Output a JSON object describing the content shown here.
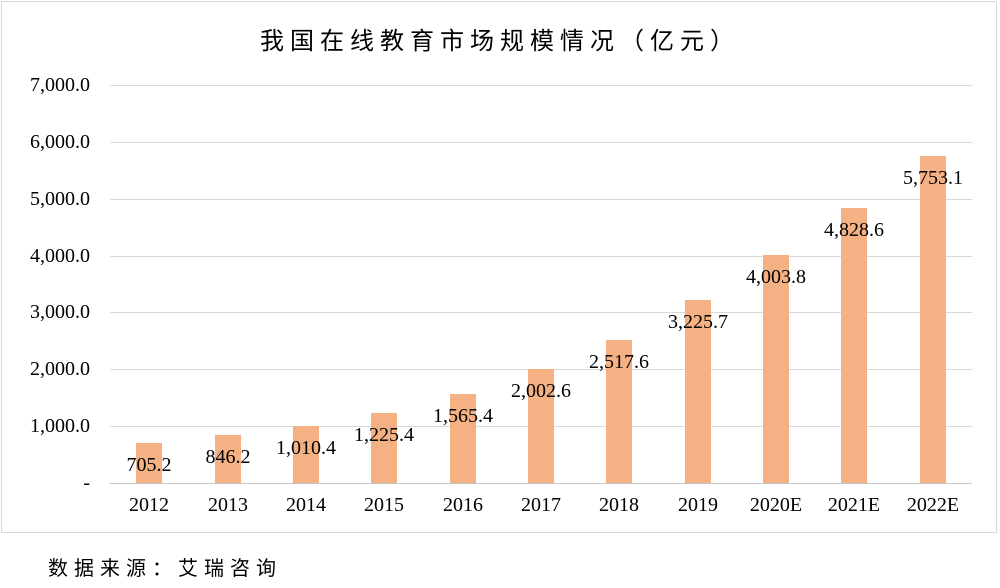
{
  "chart_data": {
    "type": "bar",
    "title": "我国在线教育市场规模情况（亿元）",
    "categories": [
      "2012",
      "2013",
      "2014",
      "2015",
      "2016",
      "2017",
      "2018",
      "2019",
      "2020E",
      "2021E",
      "2022E"
    ],
    "values": [
      705.2,
      846.2,
      1010.4,
      1225.4,
      1565.4,
      2002.6,
      2517.6,
      3225.7,
      4003.8,
      4828.6,
      5753.1
    ],
    "value_labels": [
      "705.2",
      "846.2",
      "1,010.4",
      "1,225.4",
      "1,565.4",
      "2,002.6",
      "2,517.6",
      "3,225.7",
      "4,003.8",
      "4,828.6",
      "5,753.1"
    ],
    "ylabel": "",
    "xlabel": "",
    "ylim": [
      0,
      7000
    ],
    "ytick_interval": 1000,
    "ytick_labels_bottom_to_top": [
      "-",
      "1,000.0",
      "2,000.0",
      "3,000.0",
      "4,000.0",
      "5,000.0",
      "6,000.0",
      "7,000.0"
    ],
    "grid": true,
    "legend": "none",
    "value_label_position": "inside-end",
    "bar_color": "#F4B183",
    "gridline_color": "#D9D9D9",
    "axis_line_color": "#C6C6C6",
    "frame_border_color": "#D9D9D9",
    "text_color": "#000000"
  },
  "source_note": "数据来源：艾瑞咨询"
}
